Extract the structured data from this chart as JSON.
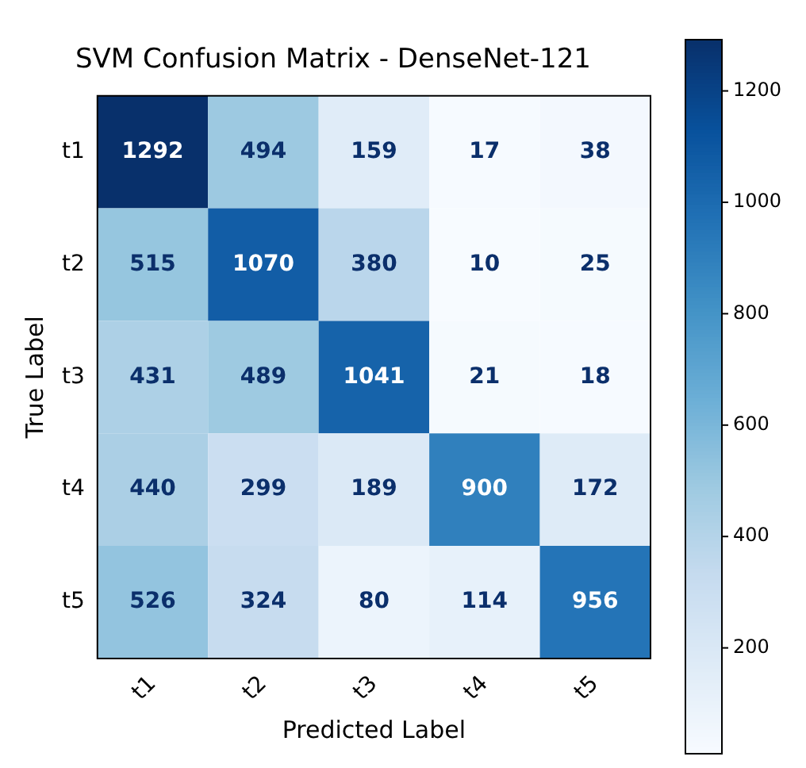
{
  "chart_data": {
    "type": "heatmap",
    "title": "SVM Confusion Matrix - DenseNet-121",
    "xlabel": "Predicted Label",
    "ylabel": "True Label",
    "categories": [
      "t1",
      "t2",
      "t3",
      "t4",
      "t5"
    ],
    "y_categories": [
      "t1",
      "t2",
      "t3",
      "t4",
      "t5"
    ],
    "cells": [
      [
        1292,
        494,
        159,
        17,
        38
      ],
      [
        515,
        1070,
        380,
        10,
        25
      ],
      [
        431,
        489,
        1041,
        21,
        18
      ],
      [
        440,
        299,
        189,
        900,
        172
      ],
      [
        526,
        324,
        80,
        114,
        956
      ]
    ],
    "clim": [
      10,
      1292
    ],
    "cticks": [
      200,
      400,
      600,
      800,
      1000,
      1200
    ],
    "data_labels": true
  }
}
